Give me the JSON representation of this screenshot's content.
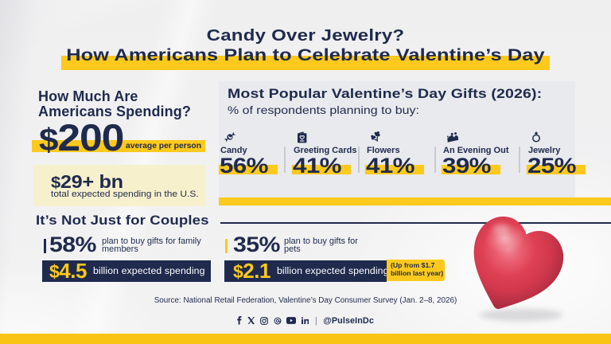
{
  "header": {
    "title_line1": "Candy Over Jewelry?",
    "title_line2": "How Americans Plan to Celebrate Valentine’s Day"
  },
  "spending": {
    "heading_line1": "How Much Are",
    "heading_line2": "Americans Spending?",
    "average": {
      "value": "$200",
      "caption": "average per person"
    },
    "total": {
      "value": "$29+ bn",
      "caption": "total expected spending in the U.S."
    }
  },
  "gifts": {
    "heading": "Most Popular Valentine’s Day Gifts (2026):",
    "subheading": "% of respondents planning to buy:",
    "items": [
      {
        "icon": "candy-icon",
        "label": "Candy",
        "percent": "56%"
      },
      {
        "icon": "greeting-card-icon",
        "label": "Greeting Cards",
        "percent": "41%"
      },
      {
        "icon": "flowers-icon",
        "label": "Flowers",
        "percent": "41%"
      },
      {
        "icon": "evening-out-icon",
        "label": "An Evening Out",
        "percent": "39%"
      },
      {
        "icon": "ring-icon",
        "label": "Jewelry",
        "percent": "25%"
      }
    ]
  },
  "couples": {
    "heading": "It’s Not Just for Couples",
    "stats": [
      {
        "percent": "58%",
        "description_line1": "plan to buy gifts for family",
        "description_line2": "members",
        "spend_value": "$4.5",
        "spend_label": "billion expected spending"
      },
      {
        "percent": "35%",
        "description_line1": "plan to buy gifts for",
        "description_line2": "pets",
        "spend_value": "$2.1",
        "spend_label": "billion expected spending",
        "note_line1": "(Up from $1.7",
        "note_line2": "billion last year)"
      }
    ]
  },
  "footer": {
    "source": "Source: National Retail Federation, Valentine’s Day Consumer Survey (Jan. 2–8, 2026)",
    "handle": "@PulseInDc"
  },
  "colors": {
    "navy": "#1f2a4d",
    "yellow": "#fdc91c",
    "cream": "#f7f0cc",
    "panel_gray": "#e9eaed",
    "heart_red": "#e0445a",
    "background": "#f1f1f2"
  },
  "chart_data": {
    "type": "bar",
    "title": "Most Popular Valentine’s Day Gifts (2026)",
    "subtitle": "% of respondents planning to buy",
    "categories": [
      "Candy",
      "Greeting Cards",
      "Flowers",
      "An Evening Out",
      "Jewelry"
    ],
    "values": [
      56,
      41,
      41,
      39,
      25
    ],
    "unit": "%",
    "other_stats": [
      {
        "label": "average spending per person",
        "value": "$200"
      },
      {
        "label": "total expected spending in the U.S.",
        "value": "$29+ bn"
      },
      {
        "label": "plan to buy gifts for family members",
        "value": "58%",
        "expected_spending": "$4.5 billion"
      },
      {
        "label": "plan to buy gifts for pets",
        "value": "35%",
        "expected_spending": "$2.1 billion",
        "note": "Up from $1.7 billion last year"
      }
    ]
  }
}
